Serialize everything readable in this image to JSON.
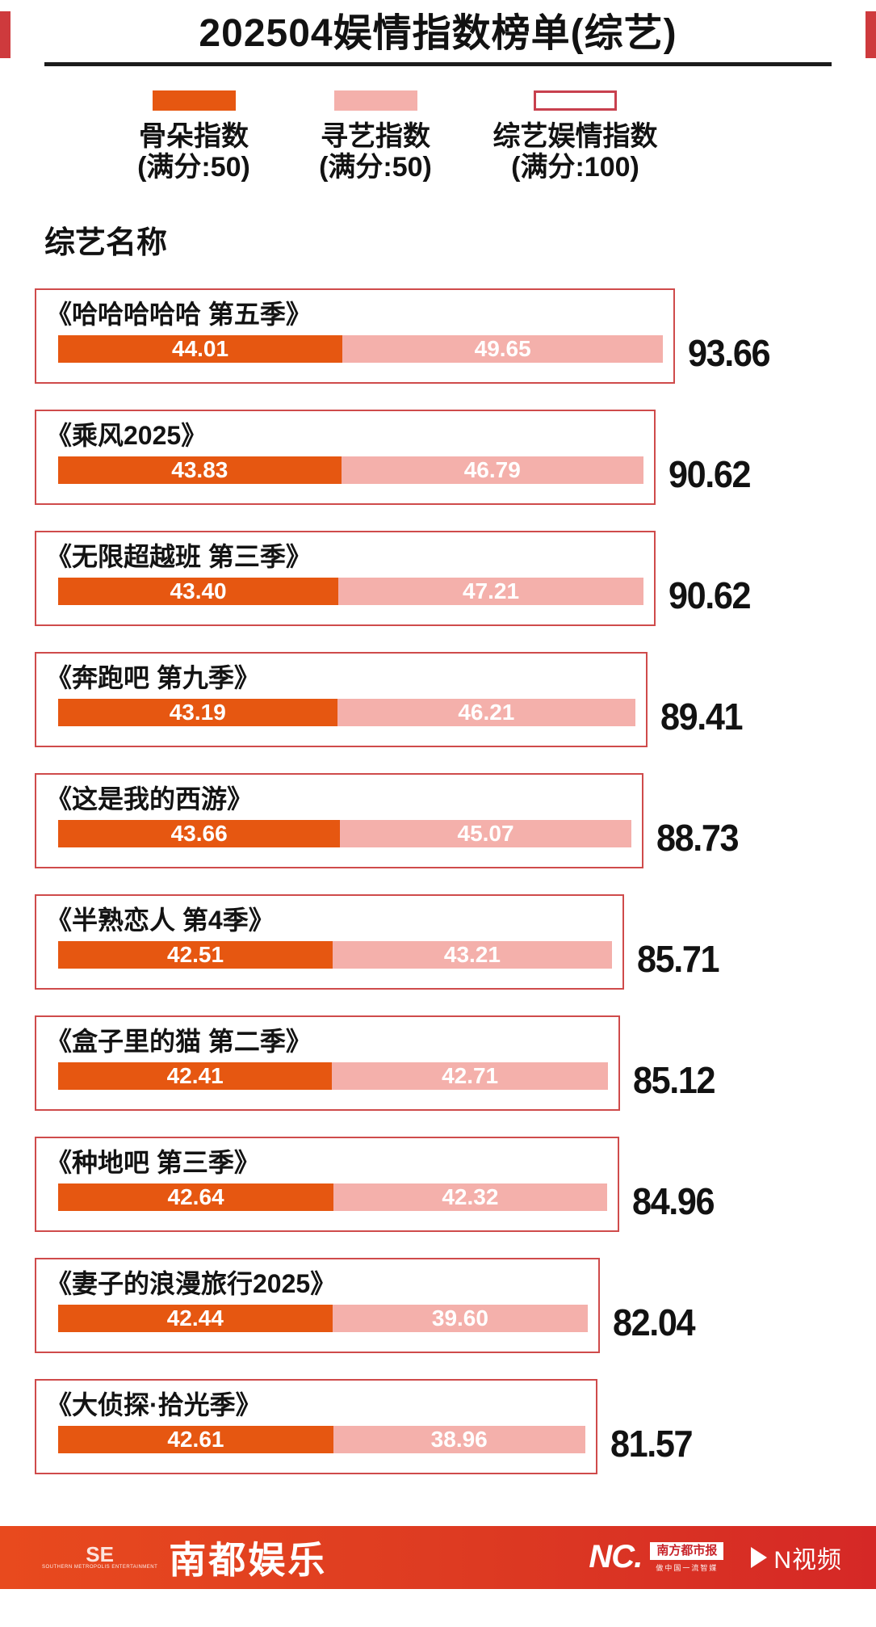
{
  "title": "202504娱情指数榜单(综艺)",
  "legend": {
    "items": [
      {
        "label": "骨朵指数",
        "sub": "(满分:50)",
        "swatch": "orange",
        "color": "#e65711"
      },
      {
        "label": "寻艺指数",
        "sub": "(满分:50)",
        "swatch": "pink",
        "color": "#f4b0ab"
      },
      {
        "label": "综艺娱情指数",
        "sub": "(满分:100)",
        "swatch": "outline",
        "color": "#c8404e"
      }
    ]
  },
  "column_header": "综艺名称",
  "chart_data": {
    "type": "bar",
    "orientation": "horizontal",
    "stacked": true,
    "title": "202504娱情指数榜单(综艺)",
    "categories": [
      "《哈哈哈哈哈 第五季》",
      "《乘风2025》",
      "《无限超越班 第三季》",
      "《奔跑吧 第九季》",
      "《这是我的西游》",
      "《半熟恋人 第4季》",
      "《盒子里的猫 第二季》",
      "《种地吧 第三季》",
      "《妻子的浪漫旅行2025》",
      "《大侦探·拾光季》"
    ],
    "series": [
      {
        "name": "骨朵指数(满分:50)",
        "max": 50,
        "color": "#e65711",
        "values": [
          44.01,
          43.83,
          43.4,
          43.19,
          43.66,
          42.51,
          42.41,
          42.64,
          42.44,
          42.61
        ]
      },
      {
        "name": "寻艺指数(满分:50)",
        "max": 50,
        "color": "#f4b0ab",
        "values": [
          49.65,
          46.79,
          47.21,
          46.21,
          45.07,
          43.21,
          42.71,
          42.32,
          39.6,
          38.96
        ]
      },
      {
        "name": "综艺娱情指数(满分:100)",
        "max": 100,
        "style": "outline-box",
        "color": "#cf4b4b",
        "values": [
          93.66,
          90.62,
          90.62,
          89.41,
          88.73,
          85.71,
          85.12,
          84.96,
          82.04,
          81.57
        ]
      }
    ],
    "xlim": [
      0,
      100
    ],
    "value_labels": "inside segments and right of box, 2 decimals",
    "legend_position": "top"
  },
  "footer": {
    "se_letters": "SE",
    "se_caption": "SOUTHERN METROPOLIS ENTERTAINMENT",
    "brand_name": "南都娱乐",
    "nc_logo": "NC.",
    "paper_name": "南方都市报",
    "paper_tagline": "做中国一流智媒",
    "video_brand": "N视频"
  },
  "colors": {
    "gudu_orange": "#e65711",
    "xunyi_pink": "#f4b0ab",
    "box_border_red": "#cf4b4b",
    "corner_strip_red": "#ce3a3d",
    "footer_gradient_left": "#e84a1e",
    "footer_gradient_right": "#d52826",
    "text_black": "#121212",
    "value_text_white": "#ffffff"
  }
}
